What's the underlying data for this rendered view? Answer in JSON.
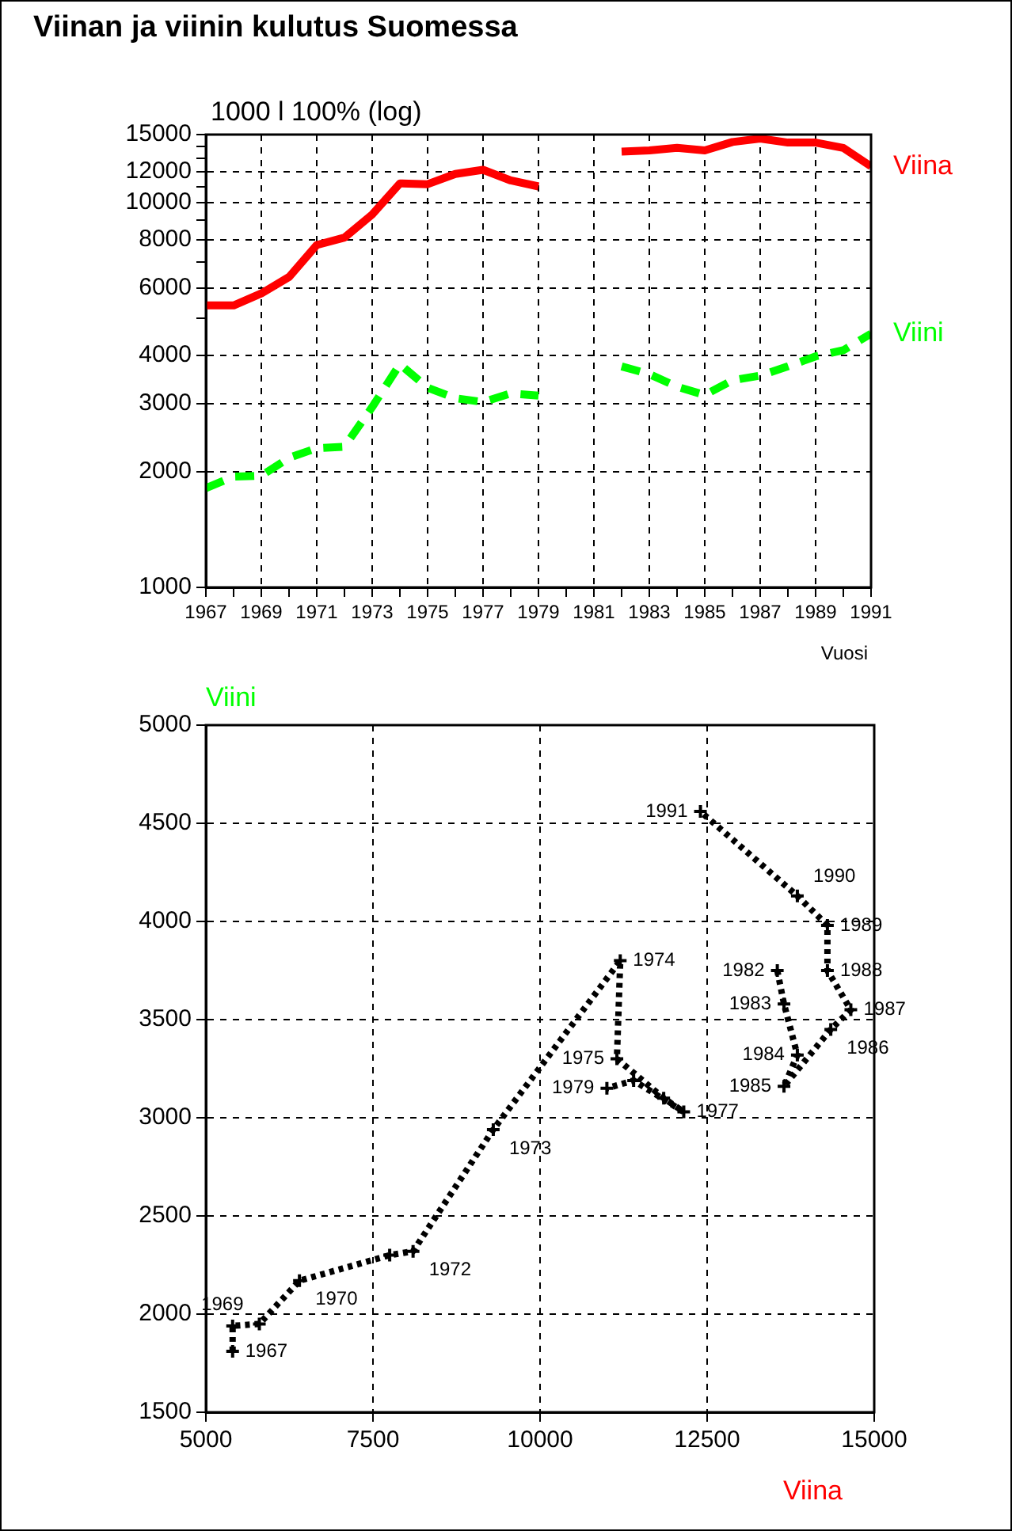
{
  "chart_data": [
    {
      "type": "line",
      "title": "Viinan ja viinin kulutus Suomessa",
      "ylabel": "1000 l 100% (log)",
      "xlabel": "Vuosi",
      "log": true,
      "grid": true,
      "legend": false,
      "x": [
        1967,
        1968,
        1969,
        1970,
        1971,
        1972,
        1973,
        1974,
        1975,
        1976,
        1977,
        1978,
        1979,
        1980,
        1981,
        1982,
        1983,
        1984,
        1985,
        1986,
        1987,
        1988,
        1989,
        1990,
        1991
      ],
      "xlim": [
        1967,
        1991
      ],
      "xticks": [
        1967,
        {
          "value": 1968,
          "label": null
        },
        1969,
        {
          "value": 1970,
          "label": null
        },
        1971,
        {
          "value": 1972,
          "label": null
        },
        1973,
        {
          "value": 1974,
          "label": null
        },
        1975,
        {
          "value": 1976,
          "label": null
        },
        1977,
        {
          "value": 1978,
          "label": null
        },
        1979,
        {
          "value": 1980,
          "label": null
        },
        1981,
        {
          "value": 1982,
          "label": null
        },
        1983,
        {
          "value": 1984,
          "label": null
        },
        1985,
        {
          "value": 1986,
          "label": null
        },
        1987,
        {
          "value": 1988,
          "label": null
        },
        1989,
        {
          "value": 1990,
          "label": null
        },
        1991
      ],
      "ylim": [
        1000,
        15000
      ],
      "yticks": [
        1000,
        2000,
        3000,
        4000,
        {
          "value": 5000,
          "label": null
        },
        6000,
        {
          "value": 7000,
          "label": null
        },
        8000,
        {
          "value": 9000,
          "label": null
        },
        10000,
        {
          "value": 11000,
          "label": null
        },
        12000,
        {
          "value": 13000,
          "label": null
        },
        {
          "value": 14000,
          "label": null
        },
        15000
      ],
      "series": [
        {
          "name": "Viina",
          "color": "#ff0000",
          "line_style": "solid",
          "values": [
            5400,
            5400,
            5800,
            6400,
            7750,
            8100,
            9300,
            11200,
            11150,
            11850,
            12150,
            11400,
            11000,
            null,
            null,
            13550,
            13650,
            13850,
            13650,
            14350,
            14650,
            14300,
            14300,
            13850,
            12400
          ]
        },
        {
          "name": "Viini",
          "color": "#00ff00",
          "line_style": "dashed",
          "values": [
            1810,
            1940,
            1950,
            2170,
            2300,
            2320,
            2940,
            3800,
            3300,
            3100,
            3030,
            3190,
            3150,
            null,
            null,
            3750,
            3580,
            3320,
            3160,
            3450,
            3550,
            3750,
            3980,
            4130,
            4560
          ]
        }
      ]
    },
    {
      "type": "line",
      "xlabel": "Viina",
      "ylabel": "Viini",
      "grid": true,
      "legend": false,
      "marker": "cross",
      "line_style": "dotted",
      "xlim": [
        5000,
        15000
      ],
      "xticks": [
        5000,
        7500,
        10000,
        12500,
        15000
      ],
      "ylim": [
        1500,
        5000
      ],
      "yticks": [
        1500,
        2000,
        2500,
        3000,
        3500,
        4000,
        4500,
        5000
      ],
      "series": [
        {
          "color": "#000000",
          "x": [
            5400,
            5400,
            5800,
            6400,
            7750,
            8100,
            9300,
            11200,
            11150,
            11850,
            12150,
            11400,
            11000,
            null,
            null,
            13550,
            13650,
            13850,
            13650,
            14350,
            14650,
            14300,
            14300,
            13850,
            12400
          ],
          "values": [
            1810,
            1940,
            1950,
            2170,
            2300,
            2320,
            2940,
            3800,
            3300,
            3100,
            3030,
            3190,
            3150,
            null,
            null,
            3750,
            3580,
            3320,
            3160,
            3450,
            3550,
            3750,
            3980,
            4130,
            4560
          ]
        }
      ],
      "annotations": [
        {
          "text": "1967",
          "x": 5400,
          "y": 1810
        },
        {
          "text": "1969",
          "x": 5800,
          "y": 1950
        },
        {
          "text": "1970",
          "x": 6400,
          "y": 2170
        },
        {
          "text": "1972",
          "x": 8100,
          "y": 2320
        },
        {
          "text": "1973",
          "x": 9300,
          "y": 2940
        },
        {
          "text": "1974",
          "x": 11200,
          "y": 3800
        },
        {
          "text": "1975",
          "x": 11150,
          "y": 3300
        },
        {
          "text": "1977",
          "x": 12150,
          "y": 3030
        },
        {
          "text": "1979",
          "x": 11000,
          "y": 3150
        },
        {
          "text": "1982",
          "x": 13550,
          "y": 3750
        },
        {
          "text": "1983",
          "x": 13650,
          "y": 3580
        },
        {
          "text": "1984",
          "x": 13850,
          "y": 3320
        },
        {
          "text": "1985",
          "x": 13650,
          "y": 3160
        },
        {
          "text": "1986",
          "x": 14350,
          "y": 3450
        },
        {
          "text": "1987",
          "x": 14650,
          "y": 3550
        },
        {
          "text": "1988",
          "x": 14300,
          "y": 3750
        },
        {
          "text": "1989",
          "x": 14300,
          "y": 3980
        },
        {
          "text": "1990",
          "x": 13850,
          "y": 4130
        },
        {
          "text": "1991",
          "x": 12400,
          "y": 4560
        }
      ]
    }
  ]
}
